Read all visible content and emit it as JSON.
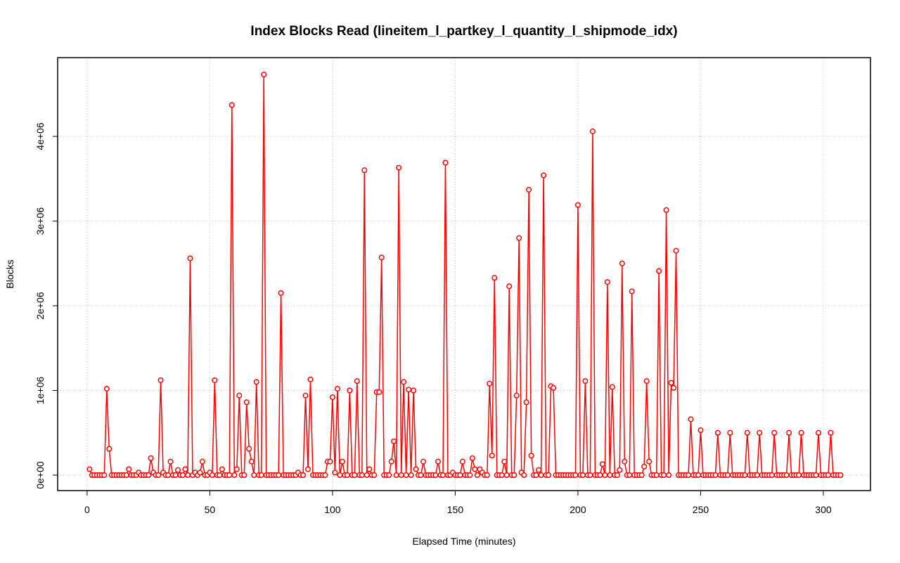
{
  "chart_data": {
    "type": "line",
    "title": "Index Blocks Read (lineitem_l_partkey_l_quantity_l_shipmode_idx)",
    "xlabel": "Elapsed Time (minutes)",
    "ylabel": "Blocks",
    "color": "#ff0000",
    "grid": true,
    "markers": true,
    "x": [
      1,
      2,
      3,
      4,
      5,
      6,
      7,
      8,
      9,
      10,
      11,
      12,
      13,
      14,
      15,
      16,
      17,
      18,
      19,
      20,
      21,
      22,
      23,
      24,
      25,
      26,
      27,
      28,
      29,
      30,
      31,
      32,
      33,
      34,
      35,
      36,
      37,
      38,
      39,
      40,
      41,
      42,
      43,
      44,
      45,
      46,
      47,
      48,
      49,
      50,
      51,
      52,
      53,
      54,
      55,
      56,
      57,
      58,
      59,
      60,
      61,
      62,
      63,
      64,
      65,
      66,
      67,
      68,
      69,
      70,
      71,
      72,
      73,
      74,
      75,
      76,
      77,
      78,
      79,
      80,
      81,
      82,
      83,
      84,
      85,
      86,
      87,
      88,
      89,
      90,
      91,
      92,
      93,
      94,
      95,
      96,
      97,
      98,
      99,
      100,
      101,
      102,
      103,
      104,
      105,
      106,
      107,
      108,
      109,
      110,
      111,
      112,
      113,
      114,
      115,
      116,
      117,
      118,
      119,
      120,
      121,
      122,
      123,
      124,
      125,
      126,
      127,
      128,
      129,
      130,
      131,
      132,
      133,
      134,
      135,
      136,
      137,
      138,
      139,
      140,
      141,
      142,
      143,
      144,
      145,
      146,
      147,
      148,
      149,
      150,
      151,
      152,
      153,
      154,
      155,
      156,
      157,
      158,
      159,
      160,
      161,
      162,
      163,
      164,
      165,
      166,
      167,
      168,
      169,
      170,
      171,
      172,
      173,
      174,
      175,
      176,
      177,
      178,
      179,
      180,
      181,
      182,
      183,
      184,
      185,
      186,
      187,
      188,
      189,
      190,
      191,
      192,
      193,
      194,
      195,
      196,
      197,
      198,
      199,
      200,
      201,
      202,
      203,
      204,
      205,
      206,
      207,
      208,
      209,
      210,
      211,
      212,
      213,
      214,
      215,
      216,
      217,
      218,
      219,
      220,
      221,
      222,
      223,
      224,
      225,
      226,
      227,
      228,
      229,
      230,
      231,
      232,
      233,
      234,
      235,
      236,
      237,
      238,
      239,
      240,
      241,
      242,
      243,
      244,
      245,
      246,
      247,
      248,
      249,
      250,
      251,
      252,
      253,
      254,
      255,
      256,
      257,
      258,
      259,
      260,
      261,
      262,
      263,
      264,
      265,
      266,
      267,
      268,
      269,
      270,
      271,
      272,
      273,
      274,
      275,
      276,
      277,
      278,
      279,
      280,
      281,
      282,
      283,
      284,
      285,
      286,
      287,
      288,
      289,
      290,
      291,
      292,
      293,
      294,
      295,
      296,
      297,
      298,
      299,
      300,
      301,
      302,
      303,
      304,
      305,
      306,
      307
    ],
    "values": [
      70000,
      0,
      0,
      0,
      0,
      0,
      0,
      1020000,
      310000,
      0,
      0,
      0,
      0,
      0,
      0,
      0,
      70000,
      0,
      0,
      0,
      30000,
      0,
      0,
      0,
      0,
      200000,
      30000,
      0,
      0,
      1120000,
      30000,
      0,
      0,
      160000,
      0,
      0,
      60000,
      0,
      0,
      70000,
      0,
      2560000,
      0,
      30000,
      0,
      30000,
      160000,
      0,
      0,
      30000,
      0,
      1120000,
      0,
      0,
      70000,
      0,
      0,
      0,
      4370000,
      0,
      70000,
      940000,
      0,
      0,
      860000,
      310000,
      160000,
      0,
      1100000,
      0,
      0,
      4730000,
      0,
      0,
      0,
      0,
      0,
      0,
      2150000,
      0,
      0,
      0,
      0,
      0,
      0,
      30000,
      0,
      0,
      940000,
      70000,
      1130000,
      0,
      0,
      0,
      0,
      0,
      0,
      160000,
      160000,
      920000,
      30000,
      1020000,
      0,
      160000,
      0,
      0,
      1000000,
      0,
      0,
      1110000,
      0,
      0,
      3600000,
      0,
      70000,
      0,
      0,
      980000,
      980000,
      2570000,
      0,
      0,
      0,
      160000,
      400000,
      0,
      3630000,
      0,
      1100000,
      0,
      1010000,
      0,
      1000000,
      70000,
      0,
      0,
      160000,
      0,
      0,
      0,
      0,
      0,
      160000,
      0,
      0,
      3690000,
      0,
      0,
      30000,
      0,
      0,
      0,
      160000,
      0,
      0,
      0,
      200000,
      70000,
      0,
      70000,
      30000,
      0,
      0,
      1080000,
      230000,
      2330000,
      0,
      0,
      0,
      160000,
      0,
      2230000,
      0,
      0,
      940000,
      2800000,
      30000,
      0,
      860000,
      3370000,
      230000,
      0,
      0,
      60000,
      0,
      3540000,
      0,
      0,
      1050000,
      1030000,
      0,
      0,
      0,
      0,
      0,
      0,
      0,
      0,
      0,
      3190000,
      0,
      0,
      1110000,
      0,
      0,
      4060000,
      0,
      0,
      0,
      130000,
      0,
      2280000,
      0,
      1040000,
      0,
      0,
      60000,
      2500000,
      160000,
      0,
      0,
      2170000,
      0,
      0,
      0,
      0,
      100000,
      1110000,
      160000,
      0,
      0,
      0,
      2410000,
      0,
      0,
      3130000,
      0,
      1090000,
      1030000,
      2650000,
      0,
      0,
      0,
      0,
      0,
      660000,
      0,
      0,
      0,
      530000,
      0,
      0,
      0,
      0,
      0,
      0,
      500000,
      0,
      0,
      0,
      0,
      500000,
      0,
      0,
      0,
      0,
      0,
      0,
      500000,
      0,
      0,
      0,
      0,
      500000,
      0,
      0,
      0,
      0,
      0,
      500000,
      0,
      0,
      0,
      0,
      0,
      500000,
      0,
      0,
      0,
      0,
      500000,
      0,
      0,
      0,
      0,
      0,
      0,
      500000,
      0,
      0,
      0,
      0,
      500000,
      0,
      0,
      0,
      0
    ],
    "xlim": [
      -12,
      319.2
    ],
    "xticks": [
      0,
      50,
      100,
      150,
      200,
      250,
      300
    ],
    "ylim": [
      -183000,
      4930000
    ],
    "yticks": [
      {
        "value": 0,
        "label": "0e+00"
      },
      {
        "value": 1000000,
        "label": "1e+06"
      },
      {
        "value": 2000000,
        "label": "2e+06"
      },
      {
        "value": 3000000,
        "label": "3e+06"
      },
      {
        "value": 4000000,
        "label": "4e+06"
      }
    ]
  }
}
